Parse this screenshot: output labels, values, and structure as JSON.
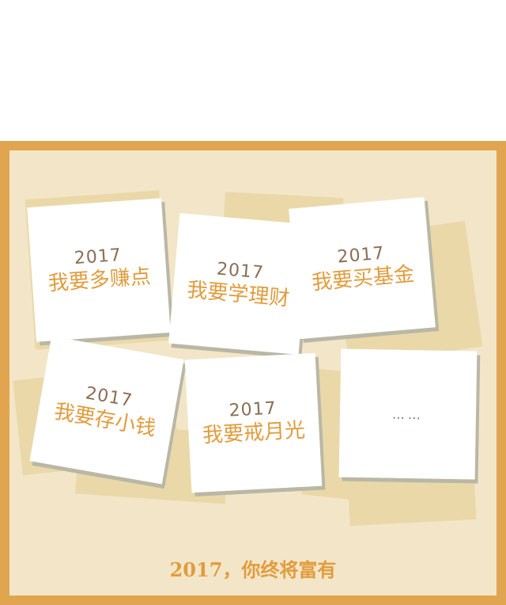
{
  "notes": [
    {
      "year": "2017",
      "goal": "我要多赚点"
    },
    {
      "year": "2017",
      "goal": "我要学理财"
    },
    {
      "year": "2017",
      "goal": "我要买基金"
    },
    {
      "year": "2017",
      "goal": "我要存小钱"
    },
    {
      "year": "2017",
      "goal": "我要戒月光"
    },
    {
      "dots": "……"
    }
  ],
  "footer": "2017，你终将富有"
}
